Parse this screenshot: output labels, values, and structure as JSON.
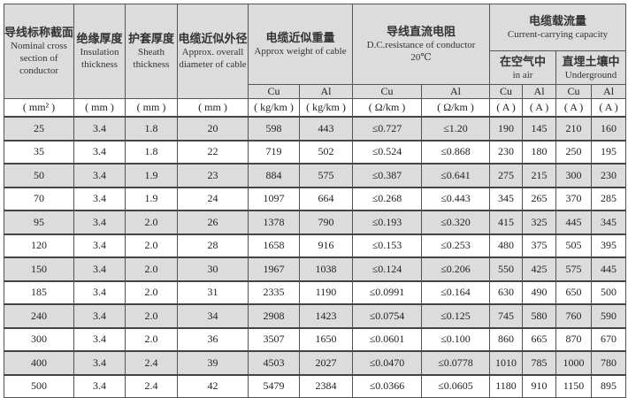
{
  "headers": {
    "nominal": {
      "zh": "导线标称截面",
      "en": "Nominal cross section of conductor",
      "unit": "( mm² )"
    },
    "insulation": {
      "zh": "绝缘厚度",
      "en": "Insulation thickness",
      "unit": "( mm )"
    },
    "sheath": {
      "zh": "护套厚度",
      "en": "Sheath thickness",
      "unit": "( mm )"
    },
    "diameter": {
      "zh": "电缆近似外径",
      "en": "Approx. overall diameter of cable",
      "unit": "( mm )"
    },
    "weight": {
      "zh": "电缆近似重量",
      "en": "Approx weight of cable",
      "cu": "Cu",
      "al": "Al",
      "unit": "( kg/km )"
    },
    "resistance": {
      "zh": "导线直流电阻",
      "en": "D.C.resistance of conductor",
      "temp": "20℃",
      "cu": "Cu",
      "al": "Al",
      "unit": "( Ω/km )"
    },
    "capacity": {
      "zh": "电缆载流量",
      "en": "Current-carrying capacity",
      "air": {
        "zh": "在空气中",
        "en": "in air"
      },
      "ground": {
        "zh": "直埋土壤中",
        "en": "Underground"
      },
      "cu": "Cu",
      "al": "Al",
      "unit": "( A )"
    }
  },
  "rows": [
    [
      "25",
      "3.4",
      "1.8",
      "20",
      "598",
      "443",
      "≤0.727",
      "≤1.20",
      "190",
      "145",
      "210",
      "160"
    ],
    [
      "35",
      "3.4",
      "1.8",
      "22",
      "719",
      "502",
      "≤0.524",
      "≤0.868",
      "230",
      "180",
      "250",
      "195"
    ],
    [
      "50",
      "3.4",
      "1.9",
      "23",
      "884",
      "575",
      "≤0.387",
      "≤0.641",
      "275",
      "215",
      "300",
      "230"
    ],
    [
      "70",
      "3.4",
      "1.9",
      "24",
      "1097",
      "664",
      "≤0.268",
      "≤0.443",
      "345",
      "265",
      "370",
      "285"
    ],
    [
      "95",
      "3.4",
      "2.0",
      "26",
      "1378",
      "790",
      "≤0.193",
      "≤0.320",
      "415",
      "325",
      "445",
      "345"
    ],
    [
      "120",
      "3.4",
      "2.0",
      "28",
      "1658",
      "916",
      "≤0.153",
      "≤0.253",
      "480",
      "375",
      "505",
      "395"
    ],
    [
      "150",
      "3.4",
      "2.0",
      "30",
      "1967",
      "1038",
      "≤0.124",
      "≤0.206",
      "550",
      "425",
      "575",
      "445"
    ],
    [
      "185",
      "3.4",
      "2.0",
      "31",
      "2335",
      "1190",
      "≤0.0991",
      "≤0.164",
      "630",
      "490",
      "650",
      "500"
    ],
    [
      "240",
      "3.4",
      "2.0",
      "34",
      "2908",
      "1423",
      "≤0.0754",
      "≤0.125",
      "745",
      "580",
      "760",
      "590"
    ],
    [
      "300",
      "3.4",
      "2.0",
      "36",
      "3507",
      "1650",
      "≤0.0601",
      "≤0.100",
      "860",
      "665",
      "870",
      "670"
    ],
    [
      "400",
      "3.4",
      "2.4",
      "39",
      "4503",
      "2027",
      "≤0.0470",
      "≤0.0778",
      "1010",
      "785",
      "1000",
      "780"
    ],
    [
      "500",
      "3.4",
      "2.4",
      "42",
      "5479",
      "2384",
      "≤0.0366",
      "≤0.0605",
      "1180",
      "910",
      "1150",
      "895"
    ]
  ]
}
